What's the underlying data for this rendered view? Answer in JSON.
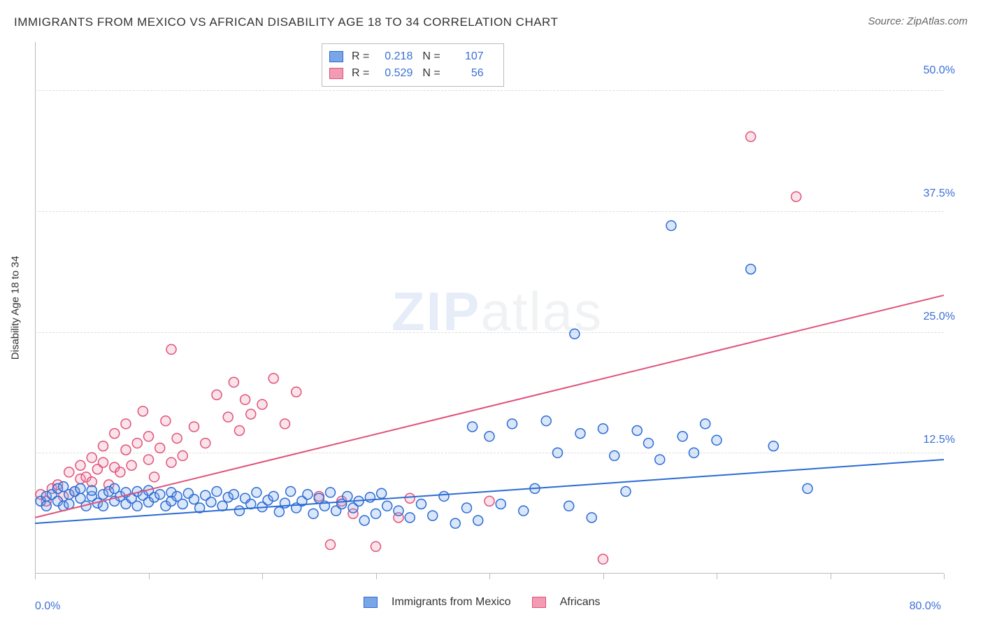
{
  "title": "IMMIGRANTS FROM MEXICO VS AFRICAN DISABILITY AGE 18 TO 34 CORRELATION CHART",
  "source": "Source: ZipAtlas.com",
  "ylabel": "Disability Age 18 to 34",
  "watermark_a": "ZIP",
  "watermark_b": "atlas",
  "chart": {
    "type": "scatter-with-regression",
    "xlim": [
      0,
      80
    ],
    "ylim": [
      0,
      55
    ],
    "x_min_label": "0.0%",
    "x_max_label": "80.0%",
    "y_ticks": [
      12.5,
      25.0,
      37.5,
      50.0
    ],
    "y_tick_labels": [
      "12.5%",
      "25.0%",
      "37.5%",
      "50.0%"
    ],
    "x_tick_positions": [
      0,
      10,
      20,
      30,
      40,
      50,
      60,
      70,
      80
    ],
    "background_color": "#ffffff",
    "grid_color": "#dddddd",
    "axis_color": "#bbbbbb",
    "tick_label_color": "#3b6fd6",
    "marker_radius": 7,
    "marker_stroke_width": 1.5,
    "marker_fill_opacity": 0.28,
    "line_width": 2,
    "series": [
      {
        "id": "mexico",
        "label": "Immigrants from Mexico",
        "color_stroke": "#2a6bd4",
        "color_fill": "#7aa6e8",
        "R": "0.218",
        "N": "107",
        "regression": {
          "x1": 0,
          "y1": 5.2,
          "x2": 80,
          "y2": 11.8
        },
        "points": [
          [
            0.5,
            7.5
          ],
          [
            1,
            8
          ],
          [
            1,
            7
          ],
          [
            1.5,
            8.2
          ],
          [
            2,
            7.5
          ],
          [
            2,
            8.8
          ],
          [
            2.5,
            7
          ],
          [
            2.5,
            9
          ],
          [
            3,
            8.2
          ],
          [
            3,
            7.2
          ],
          [
            3.5,
            8.5
          ],
          [
            4,
            7.8
          ],
          [
            4,
            8.8
          ],
          [
            4.5,
            7
          ],
          [
            5,
            8
          ],
          [
            5,
            8.6
          ],
          [
            5.5,
            7.3
          ],
          [
            6,
            8.2
          ],
          [
            6,
            7
          ],
          [
            6.5,
            8.5
          ],
          [
            7,
            7.5
          ],
          [
            7,
            8.8
          ],
          [
            7.5,
            8
          ],
          [
            8,
            7.2
          ],
          [
            8,
            8.4
          ],
          [
            8.5,
            7.8
          ],
          [
            9,
            7
          ],
          [
            9,
            8.5
          ],
          [
            9.5,
            8.1
          ],
          [
            10,
            7.4
          ],
          [
            10,
            8.6
          ],
          [
            10.5,
            7.9
          ],
          [
            11,
            8.2
          ],
          [
            11.5,
            7
          ],
          [
            12,
            8.4
          ],
          [
            12,
            7.5
          ],
          [
            12.5,
            8
          ],
          [
            13,
            7.2
          ],
          [
            13.5,
            8.3
          ],
          [
            14,
            7.7
          ],
          [
            14.5,
            6.8
          ],
          [
            15,
            8.1
          ],
          [
            15.5,
            7.4
          ],
          [
            16,
            8.5
          ],
          [
            16.5,
            7
          ],
          [
            17,
            7.9
          ],
          [
            17.5,
            8.2
          ],
          [
            18,
            6.5
          ],
          [
            18.5,
            7.8
          ],
          [
            19,
            7.2
          ],
          [
            19.5,
            8.4
          ],
          [
            20,
            6.9
          ],
          [
            20.5,
            7.6
          ],
          [
            21,
            8
          ],
          [
            21.5,
            6.4
          ],
          [
            22,
            7.3
          ],
          [
            22.5,
            8.5
          ],
          [
            23,
            6.8
          ],
          [
            23.5,
            7.5
          ],
          [
            24,
            8.2
          ],
          [
            24.5,
            6.2
          ],
          [
            25,
            7.8
          ],
          [
            25.5,
            7
          ],
          [
            26,
            8.4
          ],
          [
            26.5,
            6.5
          ],
          [
            27,
            7.2
          ],
          [
            27.5,
            8
          ],
          [
            28,
            6.8
          ],
          [
            28.5,
            7.5
          ],
          [
            29,
            5.5
          ],
          [
            29.5,
            7.9
          ],
          [
            30,
            6.2
          ],
          [
            30.5,
            8.3
          ],
          [
            31,
            7
          ],
          [
            32,
            6.5
          ],
          [
            33,
            5.8
          ],
          [
            34,
            7.2
          ],
          [
            35,
            6
          ],
          [
            36,
            8
          ],
          [
            37,
            5.2
          ],
          [
            38,
            6.8
          ],
          [
            38.5,
            15.2
          ],
          [
            39,
            5.5
          ],
          [
            40,
            14.2
          ],
          [
            41,
            7.2
          ],
          [
            42,
            15.5
          ],
          [
            43,
            6.5
          ],
          [
            44,
            8.8
          ],
          [
            45,
            15.8
          ],
          [
            46,
            12.5
          ],
          [
            47,
            7
          ],
          [
            47.5,
            24.8
          ],
          [
            48,
            14.5
          ],
          [
            49,
            5.8
          ],
          [
            50,
            15
          ],
          [
            51,
            12.2
          ],
          [
            52,
            8.5
          ],
          [
            53,
            14.8
          ],
          [
            54,
            13.5
          ],
          [
            55,
            11.8
          ],
          [
            56,
            36
          ],
          [
            57,
            14.2
          ],
          [
            58,
            12.5
          ],
          [
            59,
            15.5
          ],
          [
            60,
            13.8
          ],
          [
            63,
            31.5
          ],
          [
            65,
            13.2
          ],
          [
            68,
            8.8
          ]
        ]
      },
      {
        "id": "africans",
        "label": "Africans",
        "color_stroke": "#e0527a",
        "color_fill": "#f29bb3",
        "R": "0.529",
        "N": "56",
        "regression": {
          "x1": 0,
          "y1": 5.8,
          "x2": 80,
          "y2": 28.8
        },
        "points": [
          [
            0.5,
            8.2
          ],
          [
            1,
            7.5
          ],
          [
            1.5,
            8.8
          ],
          [
            2,
            9.2
          ],
          [
            2.5,
            8
          ],
          [
            3,
            10.5
          ],
          [
            3.5,
            8.5
          ],
          [
            4,
            9.8
          ],
          [
            4,
            11.2
          ],
          [
            4.5,
            10
          ],
          [
            5,
            9.5
          ],
          [
            5,
            12
          ],
          [
            5.5,
            10.8
          ],
          [
            6,
            11.5
          ],
          [
            6,
            13.2
          ],
          [
            6.5,
            9.2
          ],
          [
            7,
            11
          ],
          [
            7,
            14.5
          ],
          [
            7.5,
            10.5
          ],
          [
            8,
            12.8
          ],
          [
            8,
            15.5
          ],
          [
            8.5,
            11.2
          ],
          [
            9,
            13.5
          ],
          [
            9.5,
            16.8
          ],
          [
            10,
            11.8
          ],
          [
            10,
            14.2
          ],
          [
            10.5,
            10
          ],
          [
            11,
            13
          ],
          [
            11.5,
            15.8
          ],
          [
            12,
            11.5
          ],
          [
            12,
            23.2
          ],
          [
            12.5,
            14
          ],
          [
            13,
            12.2
          ],
          [
            14,
            15.2
          ],
          [
            15,
            13.5
          ],
          [
            16,
            18.5
          ],
          [
            17,
            16.2
          ],
          [
            17.5,
            19.8
          ],
          [
            18,
            14.8
          ],
          [
            18.5,
            18
          ],
          [
            19,
            16.5
          ],
          [
            20,
            17.5
          ],
          [
            21,
            20.2
          ],
          [
            22,
            15.5
          ],
          [
            23,
            18.8
          ],
          [
            25,
            8
          ],
          [
            26,
            3
          ],
          [
            27,
            7.5
          ],
          [
            28,
            6.2
          ],
          [
            30,
            2.8
          ],
          [
            32,
            5.8
          ],
          [
            33,
            7.8
          ],
          [
            40,
            7.5
          ],
          [
            50,
            1.5
          ],
          [
            63,
            45.2
          ],
          [
            67,
            39
          ]
        ]
      }
    ]
  },
  "stats_box": {
    "R_label": "R =",
    "N_label": "N ="
  },
  "legend": {
    "items": [
      "Immigrants from Mexico",
      "Africans"
    ]
  }
}
